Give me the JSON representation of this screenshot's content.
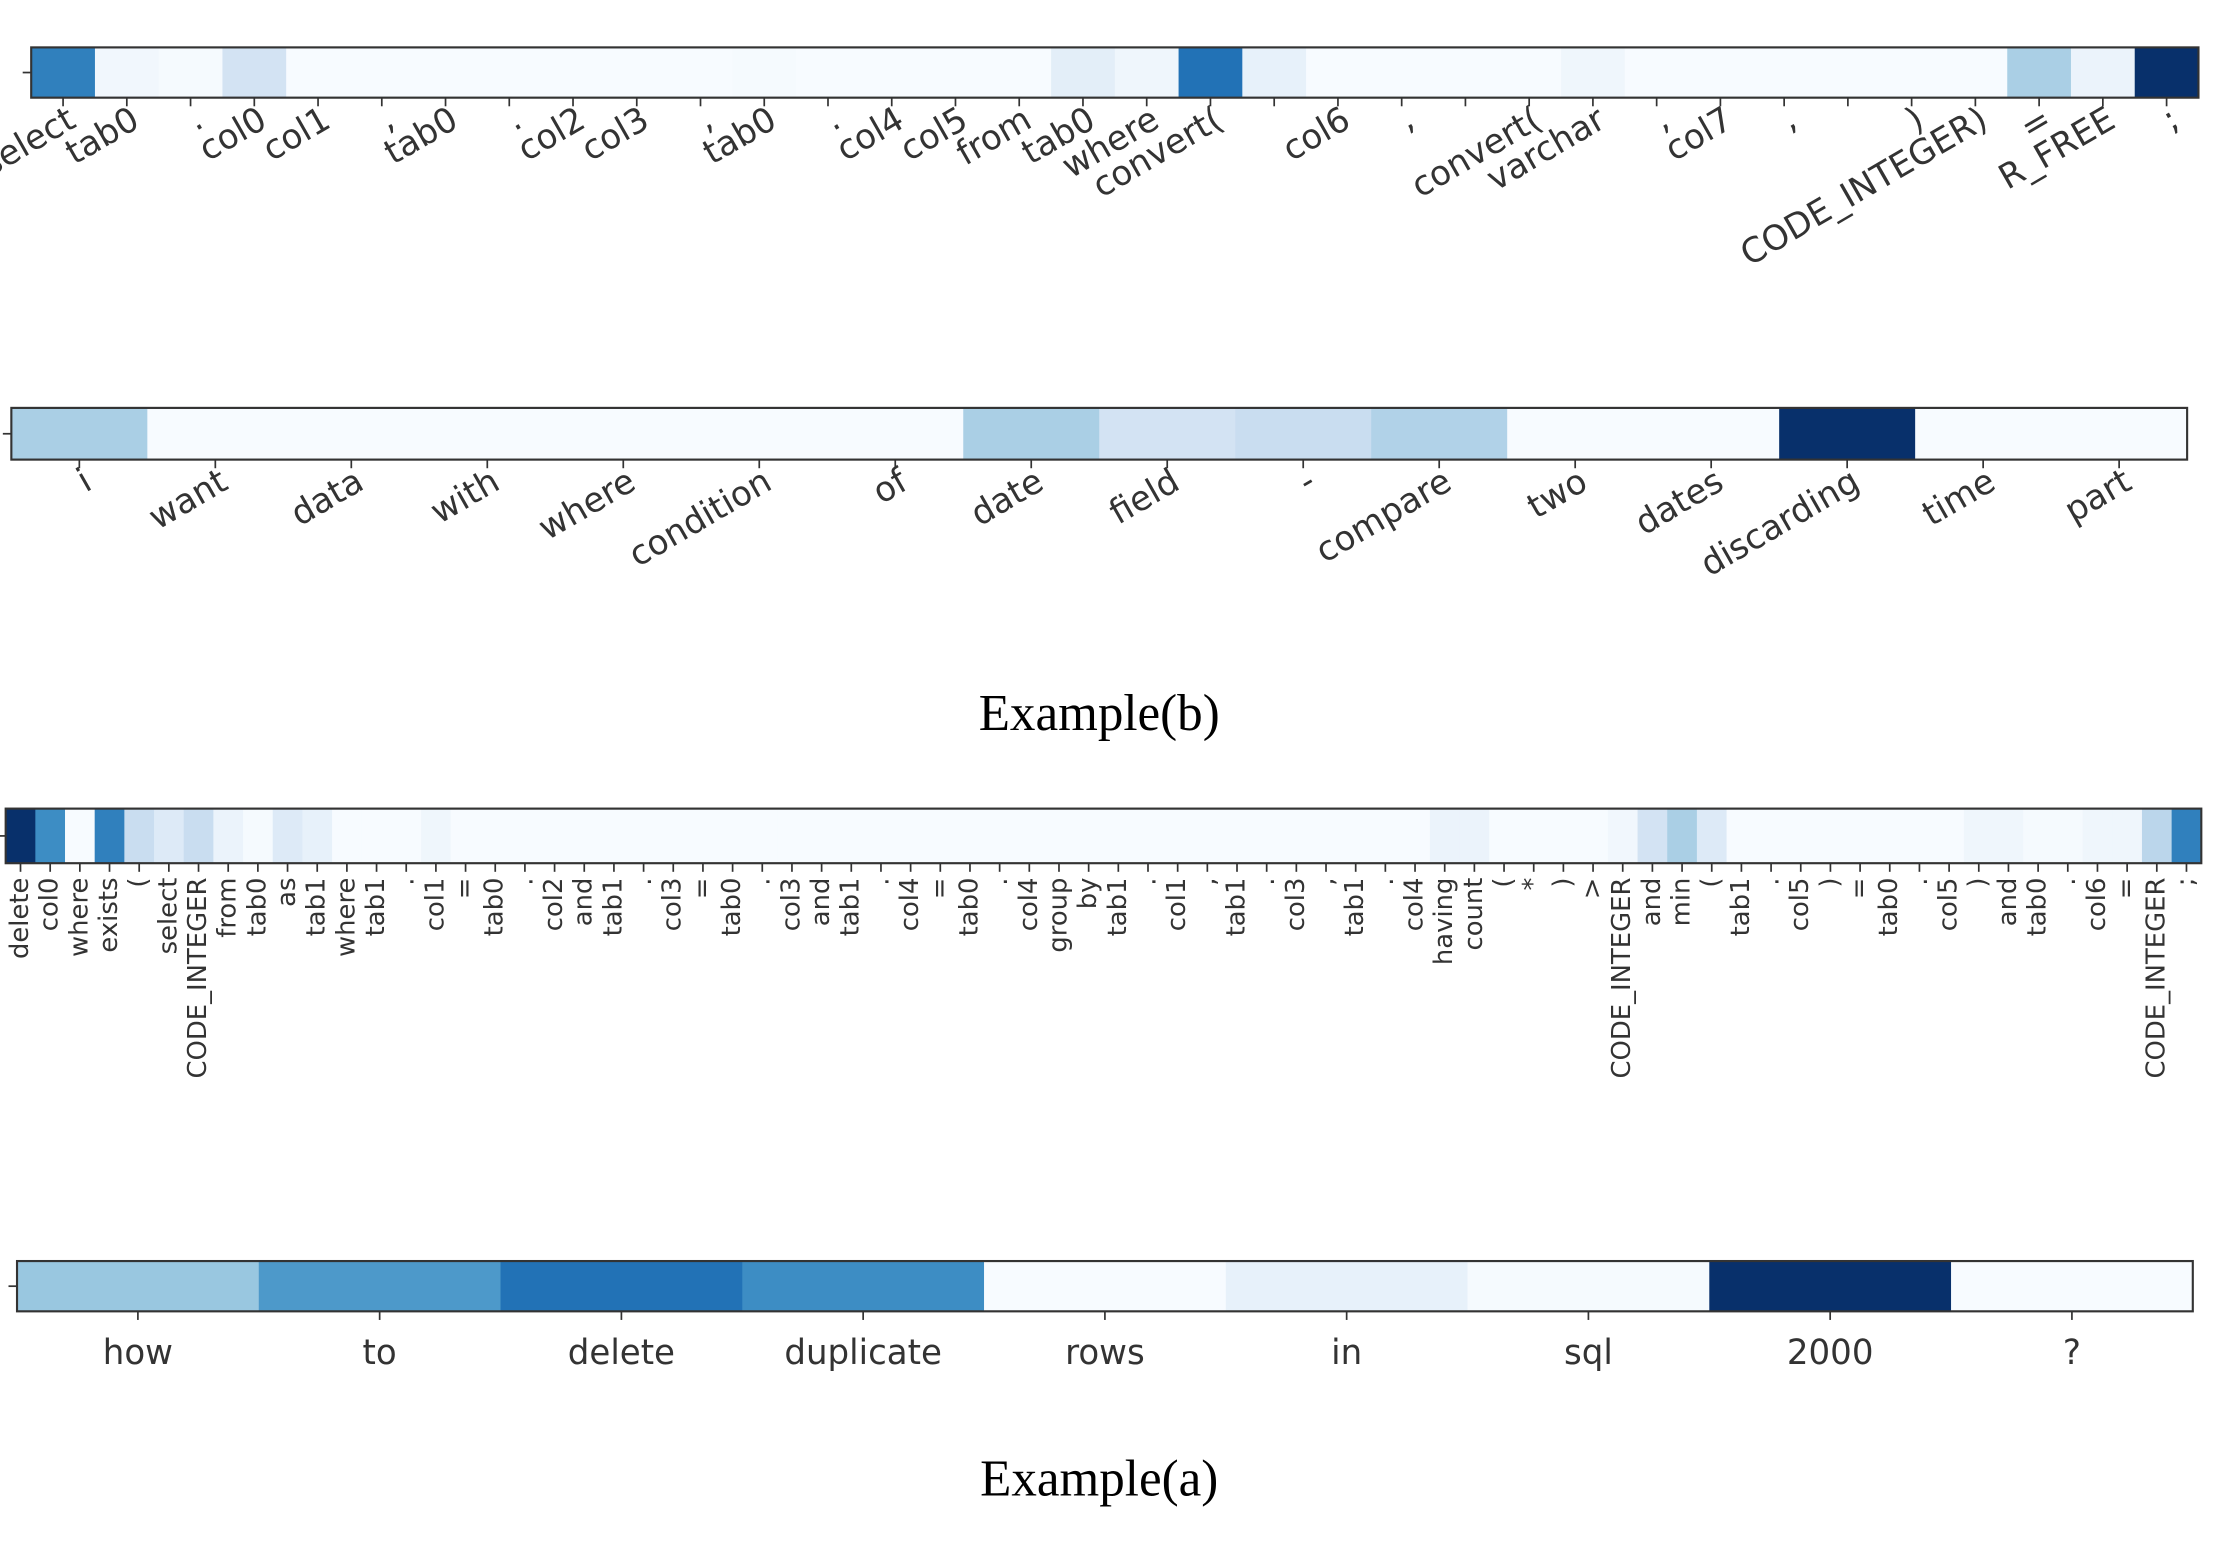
{
  "chart_data": [
    {
      "type": "heatmap",
      "colormap": "Blues",
      "label_rotation": 30,
      "categories": [
        "select",
        "tab0",
        ".",
        "col0",
        "col1",
        ",",
        "tab0",
        ".",
        "col2",
        "col3",
        ",",
        "tab0",
        ".",
        "col4",
        "col5",
        "from",
        "tab0",
        "where",
        "convert(",
        null,
        "col6",
        ",",
        null,
        "convert(",
        "varchar",
        ",",
        "col7",
        ",",
        null,
        ")",
        "CODE_INTEGER)",
        "=",
        "R_FREE",
        ";"
      ],
      "values": [
        0.7,
        0.05,
        0.03,
        0.2,
        0.02,
        0.02,
        0.02,
        0.02,
        0.02,
        0.02,
        0.02,
        0.03,
        0.02,
        0.02,
        0.02,
        0.02,
        0.12,
        0.06,
        0.75,
        0.1,
        0.02,
        0.02,
        0.02,
        0.02,
        0.06,
        0.02,
        0.02,
        0.02,
        0.02,
        0.02,
        0.02,
        0.35,
        0.08,
        1.0
      ]
    },
    {
      "type": "heatmap",
      "colormap": "Blues",
      "label_rotation": 30,
      "categories": [
        "i",
        "want",
        "data",
        "with",
        "where",
        "condition",
        "of",
        "date",
        "field",
        "-",
        "compare",
        "two",
        "dates",
        "discarding",
        "time",
        "part"
      ],
      "values": [
        0.35,
        0.02,
        0.02,
        0.02,
        0.02,
        0.02,
        0.02,
        0.35,
        0.2,
        0.25,
        0.33,
        0.02,
        0.02,
        1.0,
        0.02,
        0.02
      ]
    },
    {
      "type": "heatmap",
      "colormap": "Blues",
      "label_rotation": 90,
      "categories": [
        "delete",
        "col0",
        "where",
        "exists",
        "(",
        "select",
        "CODE_INTEGER",
        "from",
        "tab0",
        "as",
        "tab1",
        "where",
        "tab1",
        ".",
        "col1",
        "=",
        "tab0",
        ".",
        "col2",
        "and",
        "tab1",
        ".",
        "col3",
        "=",
        "tab0",
        ".",
        "col3",
        "and",
        "tab1",
        ".",
        "col4",
        "=",
        "tab0",
        ".",
        "col4",
        "group",
        "by",
        "tab1",
        ".",
        "col1",
        ",",
        "tab1",
        ".",
        "col3",
        ",",
        "tab1",
        ".",
        "col4",
        "having",
        "count",
        "(",
        "*",
        ")",
        ">",
        "CODE_INTEGER",
        "and",
        "min",
        "(",
        "tab1",
        ".",
        "col5",
        ")",
        "=",
        "tab0",
        ".",
        "col5",
        ")",
        "and",
        "tab0",
        ".",
        "col6",
        "=",
        "CODE_INTEGER",
        ";"
      ],
      "values": [
        1.0,
        0.65,
        0.02,
        0.7,
        0.25,
        0.15,
        0.25,
        0.08,
        0.03,
        0.15,
        0.1,
        0.02,
        0.02,
        0.02,
        0.06,
        0.02,
        0.02,
        0.02,
        0.02,
        0.02,
        0.02,
        0.02,
        0.02,
        0.02,
        0.02,
        0.02,
        0.02,
        0.02,
        0.02,
        0.02,
        0.02,
        0.02,
        0.02,
        0.02,
        0.02,
        0.02,
        0.02,
        0.02,
        0.02,
        0.02,
        0.02,
        0.02,
        0.02,
        0.02,
        0.02,
        0.02,
        0.02,
        0.02,
        0.08,
        0.08,
        0.02,
        0.02,
        0.02,
        0.02,
        0.05,
        0.2,
        0.35,
        0.15,
        0.02,
        0.02,
        0.02,
        0.02,
        0.02,
        0.02,
        0.02,
        0.02,
        0.06,
        0.06,
        0.03,
        0.03,
        0.06,
        0.06,
        0.3,
        0.7
      ]
    },
    {
      "type": "heatmap",
      "colormap": "Blues",
      "label_rotation": 0,
      "categories": [
        "how",
        "to",
        "delete",
        "duplicate",
        "rows",
        "in",
        "sql",
        "2000",
        "?"
      ],
      "values": [
        0.4,
        0.6,
        0.75,
        0.65,
        0.02,
        0.1,
        0.03,
        1.0,
        0.02
      ]
    }
  ],
  "captions": [
    "Example(b)",
    "Example(a)"
  ]
}
